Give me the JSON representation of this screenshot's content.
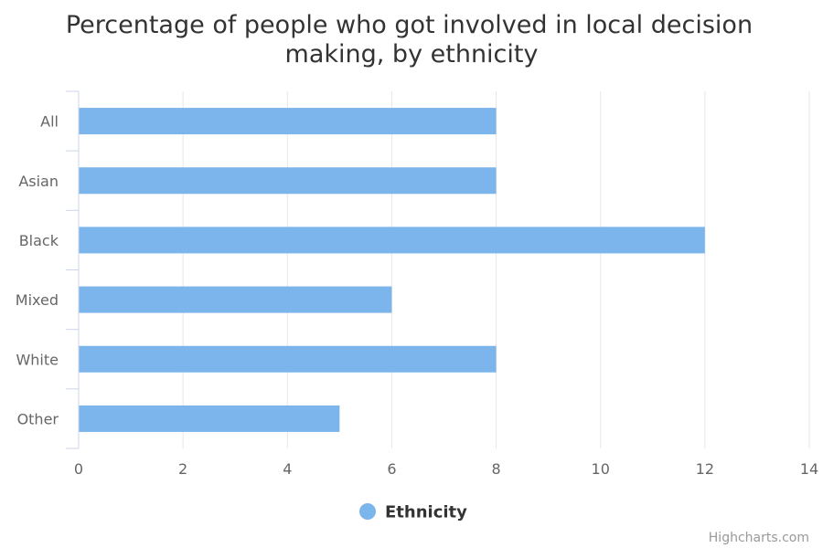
{
  "chart_data": {
    "type": "bar",
    "orientation": "horizontal",
    "title": "Percentage of people who got involved in local decision making, by ethnicity",
    "title_lines": [
      "Percentage of people who got involved in local decision",
      "making, by ethnicity"
    ],
    "categories": [
      "All",
      "Asian",
      "Black",
      "Mixed",
      "White",
      "Other"
    ],
    "series": [
      {
        "name": "Ethnicity",
        "values": [
          8,
          8,
          12,
          6,
          8,
          5
        ],
        "color": "#7cb5ec"
      }
    ],
    "xlim": [
      0,
      14
    ],
    "ticks": [
      "0",
      "2",
      "4",
      "6",
      "8",
      "10",
      "12",
      "14"
    ],
    "grid": true,
    "legend": "bottom-center"
  },
  "credits": "Highcharts.com"
}
